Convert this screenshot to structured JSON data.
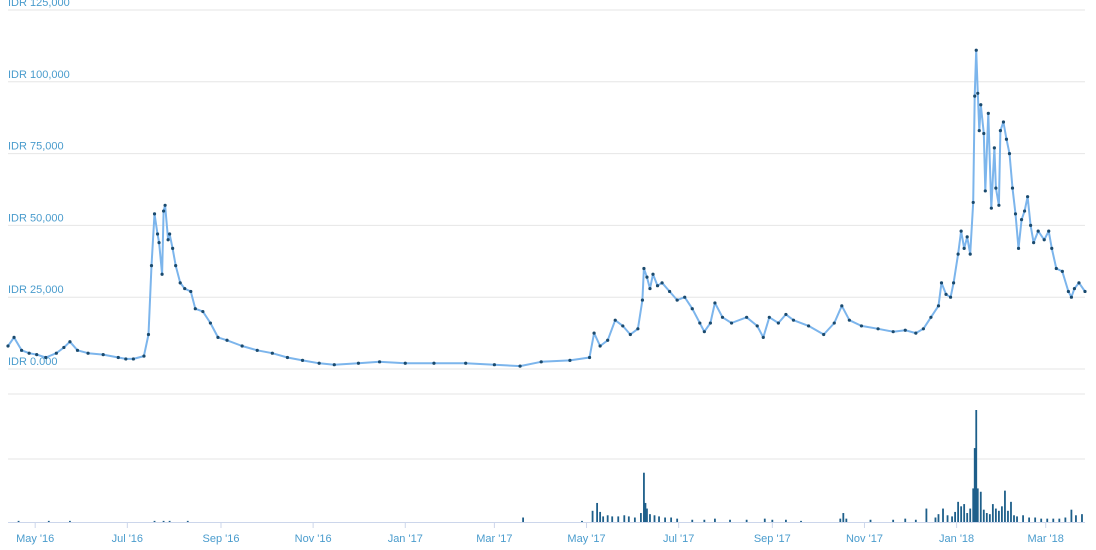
{
  "chart_data": {
    "type": "line",
    "title": "",
    "xlabel": "",
    "ylabel": "",
    "ylim": [
      0,
      125000
    ],
    "y_ticks": [
      "IDR 0.000",
      "IDR 25,000",
      "IDR 50,000",
      "IDR 75,000",
      "IDR 100,000",
      "IDR 125,000"
    ],
    "x_ticks": [
      "May '16",
      "Jul '16",
      "Sep '16",
      "Nov '16",
      "Jan '17",
      "Mar '17",
      "May '17",
      "Jul '17",
      "Sep '17",
      "Nov '17",
      "Jan '18",
      "Mar '18"
    ],
    "x_range": [
      "2016-04-13",
      "2018-03-27"
    ],
    "grid": true,
    "colors": {
      "line": "#7cb5ec",
      "point": "#1a4a6e",
      "volume": "#1e5f8a",
      "tick_text": "#4a9ccd",
      "grid": "#e6e6e6"
    },
    "price_series": {
      "name": "",
      "points": [
        [
          "2016-04-13",
          8000
        ],
        [
          "2016-04-17",
          11000
        ],
        [
          "2016-04-22",
          6500
        ],
        [
          "2016-04-27",
          5500
        ],
        [
          "2016-05-02",
          5000
        ],
        [
          "2016-05-08",
          4000
        ],
        [
          "2016-05-15",
          5500
        ],
        [
          "2016-05-20",
          7500
        ],
        [
          "2016-05-24",
          9500
        ],
        [
          "2016-05-29",
          6500
        ],
        [
          "2016-06-05",
          5500
        ],
        [
          "2016-06-15",
          5000
        ],
        [
          "2016-06-25",
          4000
        ],
        [
          "2016-06-30",
          3500
        ],
        [
          "2016-07-05",
          3500
        ],
        [
          "2016-07-12",
          4500
        ],
        [
          "2016-07-15",
          12000
        ],
        [
          "2016-07-17",
          36000
        ],
        [
          "2016-07-19",
          54000
        ],
        [
          "2016-07-21",
          47000
        ],
        [
          "2016-07-22",
          44000
        ],
        [
          "2016-07-24",
          33000
        ],
        [
          "2016-07-25",
          55000
        ],
        [
          "2016-07-26",
          57000
        ],
        [
          "2016-07-28",
          45000
        ],
        [
          "2016-07-29",
          47000
        ],
        [
          "2016-07-31",
          42000
        ],
        [
          "2016-08-02",
          36000
        ],
        [
          "2016-08-05",
          30000
        ],
        [
          "2016-08-08",
          28000
        ],
        [
          "2016-08-12",
          27000
        ],
        [
          "2016-08-15",
          21000
        ],
        [
          "2016-08-20",
          20000
        ],
        [
          "2016-08-25",
          16000
        ],
        [
          "2016-08-30",
          11000
        ],
        [
          "2016-09-05",
          10000
        ],
        [
          "2016-09-15",
          8000
        ],
        [
          "2016-09-25",
          6500
        ],
        [
          "2016-10-05",
          5500
        ],
        [
          "2016-10-15",
          4000
        ],
        [
          "2016-10-25",
          3000
        ],
        [
          "2016-11-05",
          2000
        ],
        [
          "2016-11-15",
          1500
        ],
        [
          "2016-12-01",
          2000
        ],
        [
          "2016-12-15",
          2500
        ],
        [
          "2017-01-01",
          2000
        ],
        [
          "2017-01-20",
          2000
        ],
        [
          "2017-02-10",
          2000
        ],
        [
          "2017-03-01",
          1500
        ],
        [
          "2017-03-18",
          1000
        ],
        [
          "2017-04-01",
          2500
        ],
        [
          "2017-04-20",
          3000
        ],
        [
          "2017-05-03",
          4000
        ],
        [
          "2017-05-06",
          12500
        ],
        [
          "2017-05-10",
          8000
        ],
        [
          "2017-05-15",
          10000
        ],
        [
          "2017-05-20",
          17000
        ],
        [
          "2017-05-25",
          15000
        ],
        [
          "2017-05-30",
          12000
        ],
        [
          "2017-06-04",
          14000
        ],
        [
          "2017-06-07",
          24000
        ],
        [
          "2017-06-08",
          35000
        ],
        [
          "2017-06-10",
          32000
        ],
        [
          "2017-06-12",
          28000
        ],
        [
          "2017-06-14",
          33000
        ],
        [
          "2017-06-17",
          29000
        ],
        [
          "2017-06-20",
          30000
        ],
        [
          "2017-06-25",
          27000
        ],
        [
          "2017-06-30",
          24000
        ],
        [
          "2017-07-05",
          25000
        ],
        [
          "2017-07-10",
          21000
        ],
        [
          "2017-07-15",
          16000
        ],
        [
          "2017-07-18",
          13000
        ],
        [
          "2017-07-22",
          16000
        ],
        [
          "2017-07-25",
          23000
        ],
        [
          "2017-07-30",
          18000
        ],
        [
          "2017-08-05",
          16000
        ],
        [
          "2017-08-15",
          18000
        ],
        [
          "2017-08-22",
          15000
        ],
        [
          "2017-08-26",
          11000
        ],
        [
          "2017-08-30",
          18000
        ],
        [
          "2017-09-05",
          16000
        ],
        [
          "2017-09-10",
          19000
        ],
        [
          "2017-09-15",
          17000
        ],
        [
          "2017-09-25",
          15000
        ],
        [
          "2017-10-05",
          12000
        ],
        [
          "2017-10-12",
          16000
        ],
        [
          "2017-10-17",
          22000
        ],
        [
          "2017-10-22",
          17000
        ],
        [
          "2017-10-30",
          15000
        ],
        [
          "2017-11-10",
          14000
        ],
        [
          "2017-11-20",
          13000
        ],
        [
          "2017-11-28",
          13500
        ],
        [
          "2017-12-05",
          12500
        ],
        [
          "2017-12-10",
          14000
        ],
        [
          "2017-12-15",
          18000
        ],
        [
          "2017-12-20",
          22000
        ],
        [
          "2017-12-22",
          30000
        ],
        [
          "2017-12-25",
          26000
        ],
        [
          "2017-12-28",
          25000
        ],
        [
          "2017-12-30",
          30000
        ],
        [
          "2018-01-02",
          40000
        ],
        [
          "2018-01-04",
          48000
        ],
        [
          "2018-01-06",
          42000
        ],
        [
          "2018-01-08",
          46000
        ],
        [
          "2018-01-10",
          40000
        ],
        [
          "2018-01-12",
          58000
        ],
        [
          "2018-01-13",
          95000
        ],
        [
          "2018-01-14",
          111000
        ],
        [
          "2018-01-15",
          96000
        ],
        [
          "2018-01-16",
          83000
        ],
        [
          "2018-01-17",
          92000
        ],
        [
          "2018-01-19",
          82000
        ],
        [
          "2018-01-20",
          62000
        ],
        [
          "2018-01-22",
          89000
        ],
        [
          "2018-01-24",
          56000
        ],
        [
          "2018-01-26",
          77000
        ],
        [
          "2018-01-27",
          63000
        ],
        [
          "2018-01-29",
          57000
        ],
        [
          "2018-01-30",
          83000
        ],
        [
          "2018-02-01",
          86000
        ],
        [
          "2018-02-03",
          80000
        ],
        [
          "2018-02-05",
          75000
        ],
        [
          "2018-02-07",
          63000
        ],
        [
          "2018-02-09",
          54000
        ],
        [
          "2018-02-11",
          42000
        ],
        [
          "2018-02-13",
          52000
        ],
        [
          "2018-02-15",
          55000
        ],
        [
          "2018-02-17",
          60000
        ],
        [
          "2018-02-19",
          50000
        ],
        [
          "2018-02-21",
          44000
        ],
        [
          "2018-02-24",
          48000
        ],
        [
          "2018-02-28",
          45000
        ],
        [
          "2018-03-03",
          48000
        ],
        [
          "2018-03-05",
          42000
        ],
        [
          "2018-03-08",
          35000
        ],
        [
          "2018-03-12",
          34000
        ],
        [
          "2018-03-16",
          27000
        ],
        [
          "2018-03-18",
          25000
        ],
        [
          "2018-03-20",
          28000
        ],
        [
          "2018-03-23",
          30000
        ],
        [
          "2018-03-27",
          27000
        ]
      ]
    },
    "volume_series": {
      "name": "",
      "scale_max": 100,
      "bars": [
        [
          "2016-04-20",
          1
        ],
        [
          "2016-05-10",
          1
        ],
        [
          "2016-05-24",
          1
        ],
        [
          "2016-07-19",
          1
        ],
        [
          "2016-07-25",
          1
        ],
        [
          "2016-07-29",
          1
        ],
        [
          "2016-08-10",
          1
        ],
        [
          "2017-03-20",
          4
        ],
        [
          "2017-04-28",
          1
        ],
        [
          "2017-05-05",
          10
        ],
        [
          "2017-05-08",
          17
        ],
        [
          "2017-05-10",
          9
        ],
        [
          "2017-05-12",
          5
        ],
        [
          "2017-05-15",
          6
        ],
        [
          "2017-05-18",
          5
        ],
        [
          "2017-05-22",
          5
        ],
        [
          "2017-05-26",
          6
        ],
        [
          "2017-05-29",
          5
        ],
        [
          "2017-06-02",
          4
        ],
        [
          "2017-06-06",
          8
        ],
        [
          "2017-06-08",
          44
        ],
        [
          "2017-06-09",
          17
        ],
        [
          "2017-06-10",
          12
        ],
        [
          "2017-06-12",
          7
        ],
        [
          "2017-06-15",
          6
        ],
        [
          "2017-06-18",
          5
        ],
        [
          "2017-06-22",
          4
        ],
        [
          "2017-06-26",
          4
        ],
        [
          "2017-06-30",
          3
        ],
        [
          "2017-07-10",
          2
        ],
        [
          "2017-07-18",
          2
        ],
        [
          "2017-07-25",
          3
        ],
        [
          "2017-08-04",
          2
        ],
        [
          "2017-08-15",
          2
        ],
        [
          "2017-08-27",
          3
        ],
        [
          "2017-09-01",
          2
        ],
        [
          "2017-09-10",
          2
        ],
        [
          "2017-09-20",
          1
        ],
        [
          "2017-10-16",
          3
        ],
        [
          "2017-10-18",
          8
        ],
        [
          "2017-10-20",
          3
        ],
        [
          "2017-11-05",
          2
        ],
        [
          "2017-11-20",
          2
        ],
        [
          "2017-11-28",
          3
        ],
        [
          "2017-12-05",
          2
        ],
        [
          "2017-12-12",
          12
        ],
        [
          "2017-12-18",
          4
        ],
        [
          "2017-12-20",
          7
        ],
        [
          "2017-12-23",
          12
        ],
        [
          "2017-12-26",
          6
        ],
        [
          "2017-12-29",
          5
        ],
        [
          "2017-12-31",
          9
        ],
        [
          "2018-01-02",
          18
        ],
        [
          "2018-01-04",
          14
        ],
        [
          "2018-01-06",
          16
        ],
        [
          "2018-01-08",
          8
        ],
        [
          "2018-01-10",
          12
        ],
        [
          "2018-01-12",
          30
        ],
        [
          "2018-01-13",
          66
        ],
        [
          "2018-01-14",
          100
        ],
        [
          "2018-01-15",
          30
        ],
        [
          "2018-01-17",
          27
        ],
        [
          "2018-01-19",
          11
        ],
        [
          "2018-01-21",
          8
        ],
        [
          "2018-01-23",
          7
        ],
        [
          "2018-01-25",
          16
        ],
        [
          "2018-01-27",
          12
        ],
        [
          "2018-01-29",
          10
        ],
        [
          "2018-01-31",
          14
        ],
        [
          "2018-02-02",
          28
        ],
        [
          "2018-02-04",
          10
        ],
        [
          "2018-02-06",
          18
        ],
        [
          "2018-02-08",
          6
        ],
        [
          "2018-02-10",
          5
        ],
        [
          "2018-02-14",
          6
        ],
        [
          "2018-02-18",
          4
        ],
        [
          "2018-02-22",
          4
        ],
        [
          "2018-02-26",
          3
        ],
        [
          "2018-03-02",
          3
        ],
        [
          "2018-03-06",
          3
        ],
        [
          "2018-03-10",
          3
        ],
        [
          "2018-03-14",
          4
        ],
        [
          "2018-03-18",
          11
        ],
        [
          "2018-03-21",
          6
        ],
        [
          "2018-03-25",
          7
        ]
      ]
    }
  }
}
